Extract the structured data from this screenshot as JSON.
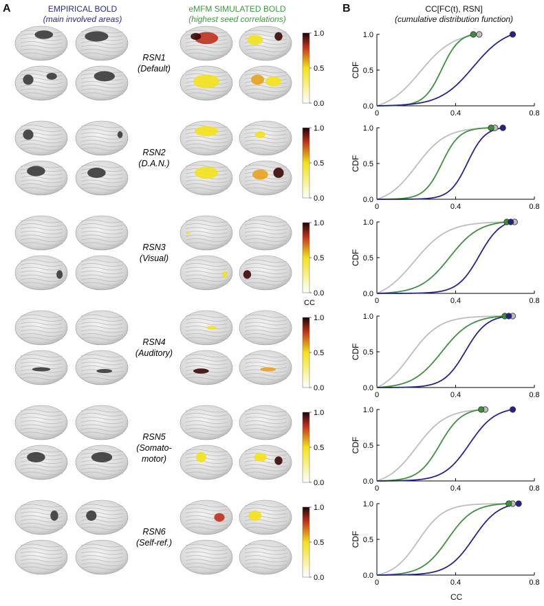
{
  "panel_a": {
    "letter": "A",
    "empirical_title": "EMPIRICAL BOLD",
    "empirical_subtitle": "(main involved areas)",
    "simulated_title": "eMFM SIMULATED BOLD",
    "simulated_subtitle": "(highest seed correlations)",
    "colorbar_ticks": [
      "1.0",
      "0.5",
      "0.0"
    ],
    "colorbar_unit": "CC",
    "rsns": [
      {
        "line1": "RSN1",
        "line2": "(Default)",
        "line3": ""
      },
      {
        "line1": "RSN2",
        "line2": "(D.A.N.)",
        "line3": ""
      },
      {
        "line1": "RSN3",
        "line2": "(Visual)",
        "line3": ""
      },
      {
        "line1": "RSN4",
        "line2": "(Auditory)",
        "line3": ""
      },
      {
        "line1": "RSN5",
        "line2": "(Somato-",
        "line3": "motor)"
      },
      {
        "line1": "RSN6",
        "line2": "(Self-ref.)",
        "line3": ""
      }
    ],
    "colors": {
      "empirical_region": "#3a3a3a",
      "cb_low": "#ffffff",
      "cb_mid": "#f2e21a",
      "cb_high2": "#c0301c",
      "cb_high": "#1a0606"
    }
  },
  "panel_b": {
    "letter": "B",
    "title": "CC[FC(t), RSN]",
    "subtitle": "(cumulative distribution function)",
    "ylabel": "CDF",
    "xlabel": "CC",
    "yticks": [
      "1.0",
      "0.5",
      "0.0"
    ],
    "xticks": [
      "0",
      "0.4",
      "0.8"
    ],
    "colors": {
      "gray": "#bdbdbd",
      "green": "#3a913a",
      "blue": "#23238a"
    }
  },
  "chart_data": [
    {
      "type": "line",
      "title": "",
      "panel": "RSN1",
      "xlim": [
        0,
        0.8
      ],
      "ylim": [
        0,
        1
      ],
      "series": [
        {
          "color": "#bdbdbd",
          "mid": 0.22,
          "width": 0.085,
          "max": 0.52
        },
        {
          "color": "#3a913a",
          "mid": 0.33,
          "width": 0.045,
          "max": 0.49
        },
        {
          "color": "#23238a",
          "mid": 0.49,
          "width": 0.085,
          "max": 0.69
        }
      ]
    },
    {
      "type": "line",
      "title": "",
      "panel": "RSN2",
      "xlim": [
        0,
        0.8
      ],
      "ylim": [
        0,
        1
      ],
      "series": [
        {
          "color": "#bdbdbd",
          "mid": 0.2,
          "width": 0.075,
          "max": 0.6
        },
        {
          "color": "#3a913a",
          "mid": 0.33,
          "width": 0.045,
          "max": 0.58
        },
        {
          "color": "#23238a",
          "mid": 0.46,
          "width": 0.045,
          "max": 0.64
        }
      ]
    },
    {
      "type": "line",
      "title": "",
      "panel": "RSN3",
      "xlim": [
        0,
        0.8
      ],
      "ylim": [
        0,
        1
      ],
      "series": [
        {
          "color": "#bdbdbd",
          "mid": 0.19,
          "width": 0.085,
          "max": 0.7
        },
        {
          "color": "#3a913a",
          "mid": 0.37,
          "width": 0.075,
          "max": 0.66
        },
        {
          "color": "#23238a",
          "mid": 0.52,
          "width": 0.055,
          "max": 0.68
        }
      ]
    },
    {
      "type": "line",
      "title": "",
      "panel": "RSN4",
      "xlim": [
        0,
        0.8
      ],
      "ylim": [
        0,
        1
      ],
      "series": [
        {
          "color": "#bdbdbd",
          "mid": 0.17,
          "width": 0.075,
          "max": 0.69
        },
        {
          "color": "#3a913a",
          "mid": 0.33,
          "width": 0.075,
          "max": 0.65
        },
        {
          "color": "#23238a",
          "mid": 0.45,
          "width": 0.055,
          "max": 0.67
        }
      ]
    },
    {
      "type": "line",
      "title": "",
      "panel": "RSN5",
      "xlim": [
        0,
        0.8
      ],
      "ylim": [
        0,
        1
      ],
      "series": [
        {
          "color": "#bdbdbd",
          "mid": 0.2,
          "width": 0.075,
          "max": 0.55
        },
        {
          "color": "#3a913a",
          "mid": 0.32,
          "width": 0.055,
          "max": 0.53
        },
        {
          "color": "#23238a",
          "mid": 0.47,
          "width": 0.065,
          "max": 0.69
        }
      ]
    },
    {
      "type": "line",
      "title": "",
      "panel": "RSN6",
      "xlim": [
        0,
        0.8
      ],
      "ylim": [
        0,
        1
      ],
      "series": [
        {
          "color": "#bdbdbd",
          "mid": 0.21,
          "width": 0.065,
          "max": 0.69
        },
        {
          "color": "#3a913a",
          "mid": 0.36,
          "width": 0.065,
          "max": 0.67
        },
        {
          "color": "#23238a",
          "mid": 0.49,
          "width": 0.065,
          "max": 0.72
        }
      ]
    }
  ]
}
